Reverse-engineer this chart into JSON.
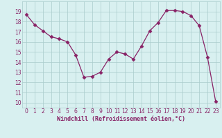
{
  "x": [
    0,
    1,
    2,
    3,
    4,
    5,
    6,
    7,
    8,
    9,
    10,
    11,
    12,
    13,
    14,
    15,
    16,
    17,
    18,
    19,
    20,
    21,
    22,
    23
  ],
  "y": [
    18.7,
    17.7,
    17.1,
    16.5,
    16.3,
    16.0,
    14.7,
    12.5,
    12.6,
    13.0,
    14.3,
    15.0,
    14.8,
    14.3,
    15.6,
    17.1,
    17.9,
    19.1,
    19.1,
    19.0,
    18.6,
    17.6,
    14.5,
    10.1
  ],
  "line_color": "#882266",
  "marker": "D",
  "marker_size": 2.5,
  "bg_color": "#d8f0f0",
  "grid_color": "#aacccc",
  "xlabel": "Windchill (Refroidissement éolien,°C)",
  "xlabel_color": "#882266",
  "tick_color": "#882266",
  "ylim": [
    9.5,
    20.0
  ],
  "xlim": [
    -0.5,
    23.5
  ],
  "yticks": [
    10,
    11,
    12,
    13,
    14,
    15,
    16,
    17,
    18,
    19
  ],
  "xticks": [
    0,
    1,
    2,
    3,
    4,
    5,
    6,
    7,
    8,
    9,
    10,
    11,
    12,
    13,
    14,
    15,
    16,
    17,
    18,
    19,
    20,
    21,
    22,
    23
  ]
}
